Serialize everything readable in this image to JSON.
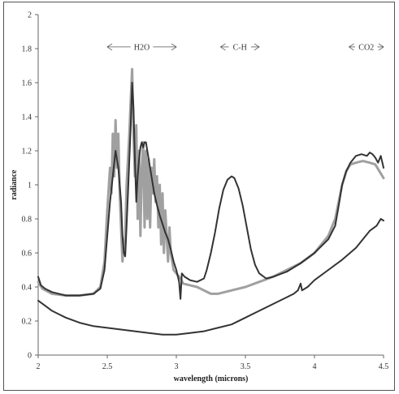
{
  "chart_data": {
    "type": "line",
    "title": "",
    "xlabel": "wavelength (microns)",
    "ylabel": "radiance",
    "xlim": [
      2,
      4.5
    ],
    "ylim": [
      0,
      2
    ],
    "grid": false,
    "legend": "none",
    "x_ticks": [
      "2",
      "2.5",
      "3",
      "3.5",
      "4",
      "4.5"
    ],
    "y_ticks": [
      "0",
      "0.2",
      "0.4",
      "0.6",
      "0.8",
      "1",
      "1.2",
      "1.4",
      "1.6",
      "1.8",
      "2"
    ],
    "annotations": [
      {
        "text": "H2O",
        "x_from": 2.5,
        "x_to": 3.0,
        "y": 1.81
      },
      {
        "text": "C-H",
        "x_from": 3.32,
        "x_to": 3.6,
        "y": 1.81
      },
      {
        "text": "CO2",
        "x_from": 4.25,
        "x_to": 4.5,
        "y": 1.81
      }
    ],
    "series": [
      {
        "color": "#a0a0a0",
        "width": 3,
        "points": [
          [
            2.0,
            0.43
          ],
          [
            2.03,
            0.39
          ],
          [
            2.1,
            0.36
          ],
          [
            2.2,
            0.35
          ],
          [
            2.3,
            0.35
          ],
          [
            2.4,
            0.36
          ],
          [
            2.45,
            0.4
          ],
          [
            2.48,
            0.55
          ],
          [
            2.5,
            0.85
          ],
          [
            2.52,
            1.1
          ],
          [
            2.53,
            0.95
          ],
          [
            2.54,
            1.3
          ],
          [
            2.55,
            1.05
          ],
          [
            2.56,
            1.38
          ],
          [
            2.57,
            1.1
          ],
          [
            2.58,
            1.3
          ],
          [
            2.59,
            0.95
          ],
          [
            2.6,
            0.75
          ],
          [
            2.61,
            0.55
          ],
          [
            2.62,
            0.65
          ],
          [
            2.63,
            0.7
          ],
          [
            2.64,
            1.0
          ],
          [
            2.65,
            1.15
          ],
          [
            2.66,
            1.3
          ],
          [
            2.67,
            1.5
          ],
          [
            2.68,
            1.68
          ],
          [
            2.69,
            1.3
          ],
          [
            2.7,
            1.05
          ],
          [
            2.71,
            1.35
          ],
          [
            2.72,
            0.8
          ],
          [
            2.73,
            1.2
          ],
          [
            2.74,
            0.7
          ],
          [
            2.75,
            1.1
          ],
          [
            2.76,
            1.25
          ],
          [
            2.77,
            0.75
          ],
          [
            2.78,
            1.2
          ],
          [
            2.79,
            0.8
          ],
          [
            2.8,
            1.15
          ],
          [
            2.81,
            0.75
          ],
          [
            2.82,
            1.1
          ],
          [
            2.83,
            0.95
          ],
          [
            2.84,
            1.15
          ],
          [
            2.85,
            0.9
          ],
          [
            2.86,
            1.05
          ],
          [
            2.87,
            0.75
          ],
          [
            2.88,
            1.0
          ],
          [
            2.89,
            0.65
          ],
          [
            2.9,
            0.95
          ],
          [
            2.91,
            0.6
          ],
          [
            2.92,
            0.85
          ],
          [
            2.93,
            0.7
          ],
          [
            2.94,
            0.55
          ],
          [
            2.95,
            0.75
          ],
          [
            2.96,
            0.6
          ],
          [
            2.97,
            0.55
          ],
          [
            2.98,
            0.5
          ],
          [
            3.0,
            0.48
          ],
          [
            3.03,
            0.45
          ],
          [
            3.05,
            0.42
          ],
          [
            3.1,
            0.41
          ],
          [
            3.15,
            0.4
          ],
          [
            3.2,
            0.38
          ],
          [
            3.25,
            0.36
          ],
          [
            3.3,
            0.36
          ],
          [
            3.35,
            0.37
          ],
          [
            3.4,
            0.38
          ],
          [
            3.5,
            0.4
          ],
          [
            3.6,
            0.43
          ],
          [
            3.7,
            0.46
          ],
          [
            3.8,
            0.5
          ],
          [
            3.9,
            0.54
          ],
          [
            4.0,
            0.6
          ],
          [
            4.1,
            0.7
          ],
          [
            4.15,
            0.8
          ],
          [
            4.18,
            0.92
          ],
          [
            4.2,
            1.0
          ],
          [
            4.23,
            1.08
          ],
          [
            4.26,
            1.12
          ],
          [
            4.3,
            1.13
          ],
          [
            4.35,
            1.14
          ],
          [
            4.4,
            1.13
          ],
          [
            4.44,
            1.12
          ],
          [
            4.47,
            1.08
          ],
          [
            4.5,
            1.04
          ]
        ]
      },
      {
        "color": "#333333",
        "width": 2,
        "points": [
          [
            2.0,
            0.46
          ],
          [
            2.02,
            0.41
          ],
          [
            2.05,
            0.39
          ],
          [
            2.1,
            0.37
          ],
          [
            2.2,
            0.35
          ],
          [
            2.3,
            0.35
          ],
          [
            2.4,
            0.36
          ],
          [
            2.45,
            0.39
          ],
          [
            2.48,
            0.5
          ],
          [
            2.5,
            0.7
          ],
          [
            2.52,
            0.9
          ],
          [
            2.54,
            1.05
          ],
          [
            2.56,
            1.2
          ],
          [
            2.57,
            1.15
          ],
          [
            2.58,
            1.1
          ],
          [
            2.6,
            0.9
          ],
          [
            2.61,
            0.7
          ],
          [
            2.62,
            0.6
          ],
          [
            2.63,
            0.58
          ],
          [
            2.65,
            0.95
          ],
          [
            2.67,
            1.35
          ],
          [
            2.68,
            1.6
          ],
          [
            2.69,
            1.45
          ],
          [
            2.7,
            1.15
          ],
          [
            2.71,
            0.9
          ],
          [
            2.72,
            1.05
          ],
          [
            2.73,
            1.15
          ],
          [
            2.74,
            1.22
          ],
          [
            2.75,
            1.25
          ],
          [
            2.76,
            1.22
          ],
          [
            2.77,
            1.25
          ],
          [
            2.78,
            1.25
          ],
          [
            2.79,
            1.2
          ],
          [
            2.8,
            1.15
          ],
          [
            2.82,
            1.05
          ],
          [
            2.84,
            0.95
          ],
          [
            2.86,
            0.88
          ],
          [
            2.88,
            0.82
          ],
          [
            2.9,
            0.77
          ],
          [
            2.92,
            0.72
          ],
          [
            2.94,
            0.68
          ],
          [
            2.96,
            0.62
          ],
          [
            2.98,
            0.55
          ],
          [
            3.0,
            0.5
          ],
          [
            3.02,
            0.43
          ],
          [
            3.03,
            0.33
          ],
          [
            3.04,
            0.48
          ],
          [
            3.06,
            0.46
          ],
          [
            3.1,
            0.44
          ],
          [
            3.15,
            0.43
          ],
          [
            3.2,
            0.45
          ],
          [
            3.22,
            0.5
          ],
          [
            3.25,
            0.6
          ],
          [
            3.28,
            0.72
          ],
          [
            3.31,
            0.86
          ],
          [
            3.34,
            0.97
          ],
          [
            3.37,
            1.03
          ],
          [
            3.4,
            1.05
          ],
          [
            3.42,
            1.04
          ],
          [
            3.45,
            0.98
          ],
          [
            3.48,
            0.88
          ],
          [
            3.51,
            0.75
          ],
          [
            3.54,
            0.62
          ],
          [
            3.57,
            0.53
          ],
          [
            3.6,
            0.48
          ],
          [
            3.65,
            0.45
          ],
          [
            3.7,
            0.46
          ],
          [
            3.8,
            0.49
          ],
          [
            3.9,
            0.54
          ],
          [
            4.0,
            0.6
          ],
          [
            4.1,
            0.68
          ],
          [
            4.15,
            0.76
          ],
          [
            4.18,
            0.9
          ],
          [
            4.2,
            1.0
          ],
          [
            4.23,
            1.08
          ],
          [
            4.26,
            1.13
          ],
          [
            4.3,
            1.17
          ],
          [
            4.34,
            1.18
          ],
          [
            4.38,
            1.17
          ],
          [
            4.4,
            1.19
          ],
          [
            4.42,
            1.18
          ],
          [
            4.44,
            1.16
          ],
          [
            4.46,
            1.13
          ],
          [
            4.48,
            1.17
          ],
          [
            4.5,
            1.1
          ]
        ]
      },
      {
        "color": "#333333",
        "width": 2,
        "points": [
          [
            2.0,
            0.32
          ],
          [
            2.05,
            0.29
          ],
          [
            2.1,
            0.26
          ],
          [
            2.15,
            0.24
          ],
          [
            2.2,
            0.22
          ],
          [
            2.3,
            0.19
          ],
          [
            2.4,
            0.17
          ],
          [
            2.5,
            0.16
          ],
          [
            2.6,
            0.15
          ],
          [
            2.7,
            0.14
          ],
          [
            2.8,
            0.13
          ],
          [
            2.9,
            0.12
          ],
          [
            3.0,
            0.12
          ],
          [
            3.1,
            0.13
          ],
          [
            3.2,
            0.14
          ],
          [
            3.3,
            0.16
          ],
          [
            3.4,
            0.18
          ],
          [
            3.5,
            0.22
          ],
          [
            3.6,
            0.26
          ],
          [
            3.7,
            0.3
          ],
          [
            3.8,
            0.34
          ],
          [
            3.85,
            0.36
          ],
          [
            3.88,
            0.38
          ],
          [
            3.9,
            0.42
          ],
          [
            3.91,
            0.38
          ],
          [
            3.95,
            0.4
          ],
          [
            4.0,
            0.44
          ],
          [
            4.1,
            0.5
          ],
          [
            4.2,
            0.56
          ],
          [
            4.3,
            0.63
          ],
          [
            4.35,
            0.68
          ],
          [
            4.4,
            0.73
          ],
          [
            4.45,
            0.76
          ],
          [
            4.48,
            0.8
          ],
          [
            4.5,
            0.79
          ]
        ]
      }
    ]
  }
}
